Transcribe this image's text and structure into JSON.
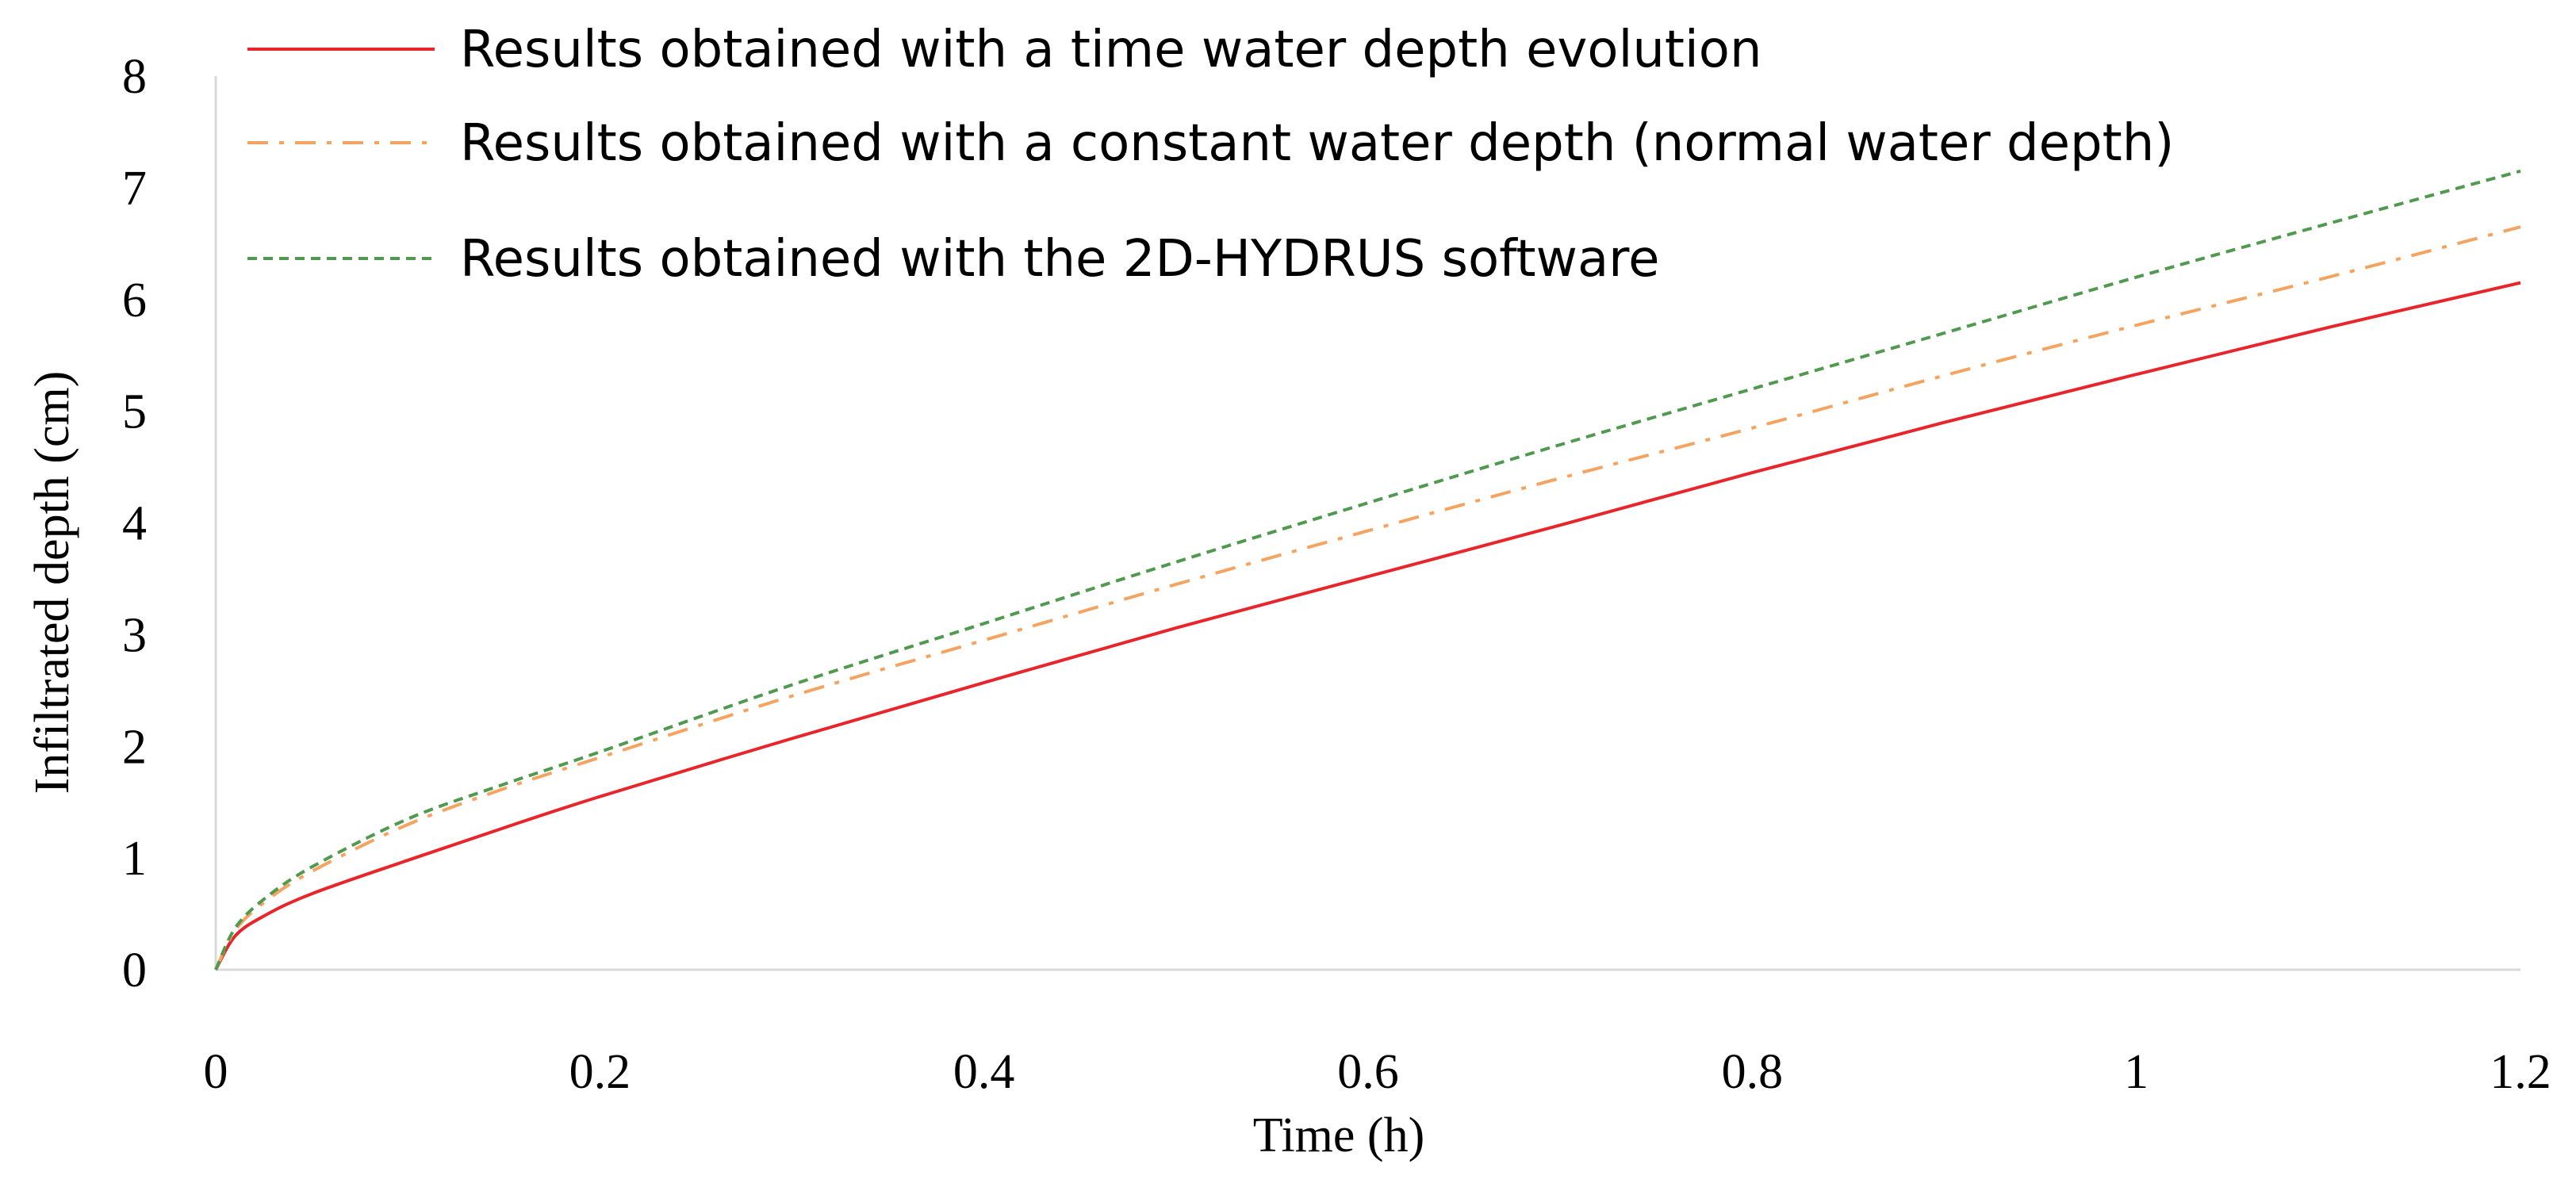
{
  "chart_data": {
    "type": "line",
    "title": "",
    "xlabel": "Time (h)",
    "ylabel": "Infiltrated depth (cm)",
    "xlim": [
      0,
      1.2
    ],
    "ylim": [
      0,
      8
    ],
    "x_ticks": [
      "0",
      "0.2",
      "0.4",
      "0.6",
      "0.8",
      "1",
      "1.2"
    ],
    "y_ticks": [
      "0",
      "1",
      "2",
      "3",
      "4",
      "5",
      "6",
      "7",
      "8"
    ],
    "grid": false,
    "legend_position": "top-left",
    "x": [
      0,
      0.01,
      0.025,
      0.05,
      0.1,
      0.15,
      0.2,
      0.3,
      0.4,
      0.5,
      0.6,
      0.7,
      0.8,
      0.9,
      1.0,
      1.1,
      1.2
    ],
    "series": [
      {
        "name": "Results obtained with a time water depth evolution",
        "color": "#e8252b",
        "style": "solid",
        "values": [
          0,
          0.3,
          0.48,
          0.68,
          0.98,
          1.27,
          1.55,
          2.07,
          2.57,
          3.06,
          3.52,
          3.98,
          4.45,
          4.9,
          5.33,
          5.75,
          6.15
        ]
      },
      {
        "name": "Results obtained with a constant water depth (normal water depth)",
        "color": "#f4a460",
        "style": "dashdot",
        "values": [
          0,
          0.35,
          0.6,
          0.88,
          1.3,
          1.62,
          1.9,
          2.45,
          2.95,
          3.45,
          3.93,
          4.4,
          4.85,
          5.32,
          5.77,
          6.2,
          6.65
        ]
      },
      {
        "name": "Results obtained with the 2D-HYDRUS software",
        "color": "#4f9a4f",
        "style": "dashed",
        "values": [
          0,
          0.37,
          0.63,
          0.92,
          1.35,
          1.66,
          1.95,
          2.55,
          3.1,
          3.65,
          4.18,
          4.7,
          5.2,
          5.7,
          6.2,
          6.68,
          7.15
        ]
      }
    ]
  }
}
